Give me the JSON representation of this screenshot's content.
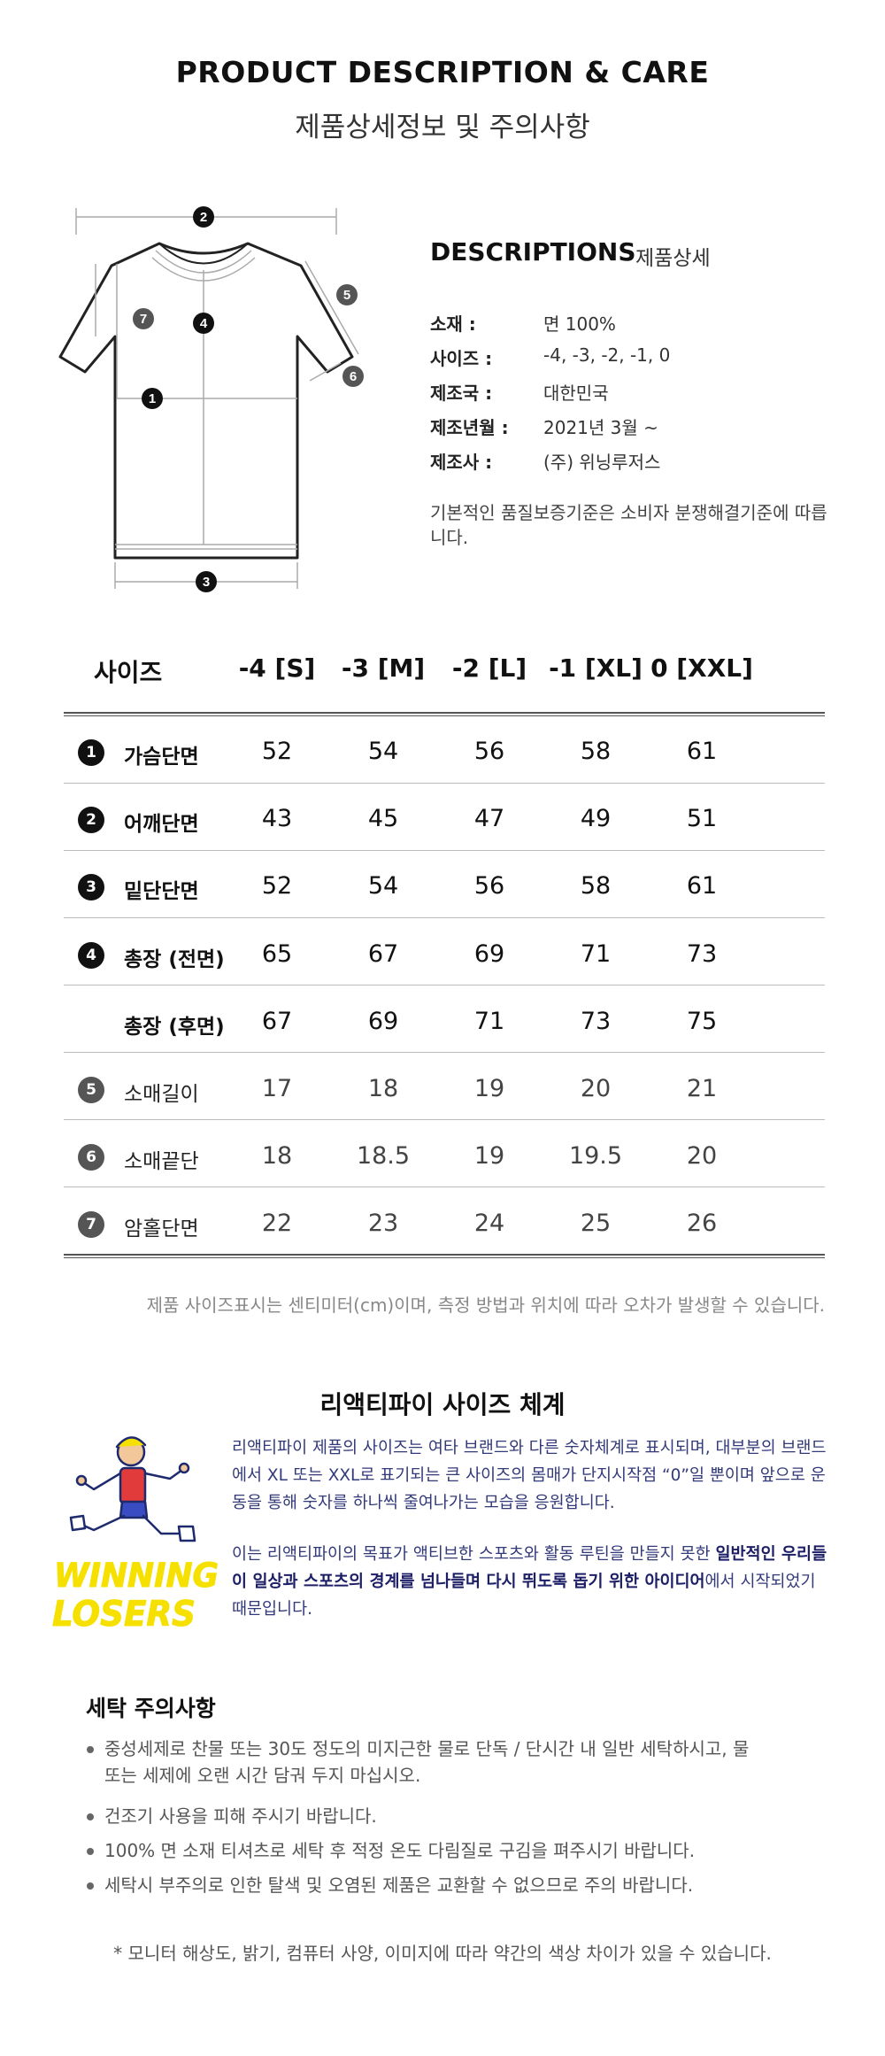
{
  "header": {
    "title_en": "PRODUCT DESCRIPTION & CARE",
    "title_ko": "제품상세정보 및 주의사항"
  },
  "diagram": {
    "markers": [
      "1",
      "2",
      "3",
      "4",
      "5",
      "6",
      "7"
    ]
  },
  "descriptions": {
    "heading": "DESCRIPTIONS",
    "heading_sub": "제품상세",
    "specs": [
      {
        "label": "소재 :",
        "value": "면 100%"
      },
      {
        "label": "사이즈 :",
        "value": "-4, -3, -2, -1, 0"
      },
      {
        "label": "제조국 :",
        "value": "대한민국"
      },
      {
        "label": "제조년월 :",
        "value": "2021년 3월 ~"
      },
      {
        "label": "제조사 :",
        "value": "(주) 위닝루저스"
      }
    ],
    "note": "기본적인 품질보증기준은 소비자 분쟁해결기준에 따릅니다."
  },
  "size_table": {
    "header_label": "사이즈",
    "columns": [
      "-4 [S]",
      "-3 [M]",
      "-2 [L]",
      "-1 [XL]",
      "0 [XXL]"
    ],
    "rows": [
      {
        "marker": "1",
        "label": "가슴단면",
        "values": [
          "52",
          "54",
          "56",
          "58",
          "61"
        ]
      },
      {
        "marker": "2",
        "label": "어깨단면",
        "values": [
          "43",
          "45",
          "47",
          "49",
          "51"
        ]
      },
      {
        "marker": "3",
        "label": "밑단단면",
        "values": [
          "52",
          "54",
          "56",
          "58",
          "61"
        ]
      },
      {
        "marker": "4",
        "label": "총장 (전면)",
        "values": [
          "65",
          "67",
          "69",
          "71",
          "73"
        ]
      },
      {
        "marker": "",
        "label": "총장 (후면)",
        "values": [
          "67",
          "69",
          "71",
          "73",
          "75"
        ]
      },
      {
        "marker": "5",
        "label": "소매길이",
        "values": [
          "17",
          "18",
          "19",
          "20",
          "21"
        ]
      },
      {
        "marker": "6",
        "label": "소매끝단",
        "values": [
          "18",
          "18.5",
          "19",
          "19.5",
          "20"
        ]
      },
      {
        "marker": "7",
        "label": "암홀단면",
        "values": [
          "22",
          "23",
          "24",
          "25",
          "26"
        ]
      }
    ],
    "note": "제품 사이즈표시는 센티미터(cm)이며, 측정 방법과 위치에 따라 오차가 발생할 수 있습니다."
  },
  "size_system": {
    "title": "리액티파이 사이즈 체계",
    "logo_text": [
      "WINNING",
      "LOSERS"
    ],
    "paragraph1": "리액티파이 제품의 사이즈는 여타 브랜드와 다른 숫자체계로 표시되며, 대부분의 브랜드에서 XL 또는 XXL로 표기되는 큰 사이즈의 몸매가 단지시작점 “0”일 뿐이며 앞으로 운동을 통해 숫자를 하나씩 줄여나가는 모습을 응원합니다.",
    "p2_part1": "이는 리액티파이의 목표가 액티브한 스포츠와 활동 루틴을 만들지 못한 ",
    "p2_bold1": "일반적인 우리들이 일상과 스포츠의 경계를 넘나들며 다시 뛰도록 돕기 위한 아이디어",
    "p2_part2": "에서 시작되었기 때문입니다."
  },
  "care": {
    "title": "세탁 주의사항",
    "items": [
      "중성세제로 찬물 또는 30도 정도의 미지근한 물로 단독 / 단시간 내 일반 세탁하시고, 물 또는 세제에 오랜 시간 담궈 두지 마십시오.",
      "건조기 사용을 피해 주시기 바랍니다.",
      "100% 면 소재 티셔츠로 세탁 후 적정 온도 다림질로 구김을 펴주시기 바랍니다.",
      "세탁시 부주의로 인한 탈색 및 오염된 제품은 교환할 수 없으므로 주의 바랍니다."
    ]
  },
  "footer_note": "* 모니터 해상도, 밝기, 컴퓨터 사양, 이미지에 따라 약간의 색상 차이가 있을 수 있습니다.",
  "colors": {
    "text": "#222222",
    "accent_text": "#333a7a",
    "logo_yellow": "#f5e000",
    "badge_dark": "#111111",
    "badge_gray": "#555555"
  }
}
